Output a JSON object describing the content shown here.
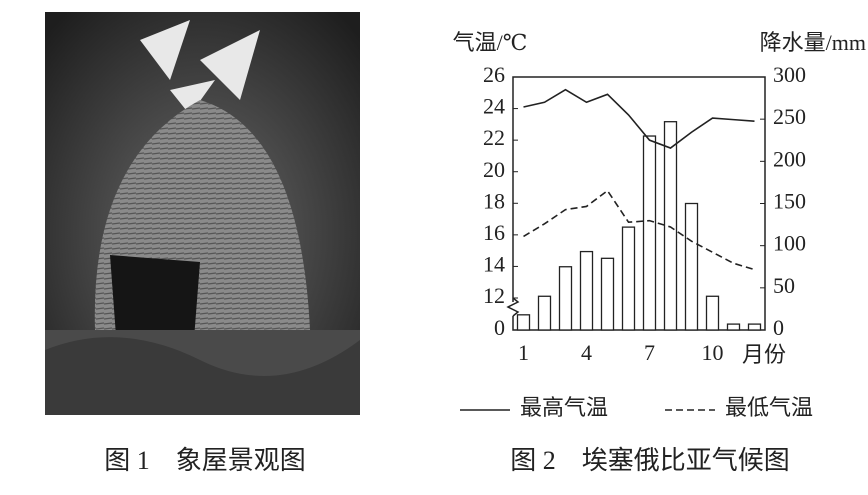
{
  "figure1": {
    "caption": "图 1　象屋景观图"
  },
  "chart_data": {
    "type": "bar_line",
    "title": "图 2　埃塞俄比亚气候图",
    "y_label": "气温/℃",
    "y2_label": "降水量/mm",
    "x_label": "月份",
    "categories": [
      1,
      null,
      null,
      4,
      null,
      null,
      7,
      null,
      null,
      10,
      null,
      null
    ],
    "series": [
      {
        "name": "最高气温",
        "type": "line",
        "dash": false,
        "color": "#222222",
        "values": [
          24.1,
          24.4,
          25.2,
          24.4,
          24.9,
          23.6,
          22.0,
          21.5,
          22.5,
          23.4,
          23.3,
          23.2
        ]
      },
      {
        "name": "最低气温",
        "type": "line",
        "dash": true,
        "color": "#222222",
        "values": [
          15.9,
          16.7,
          17.6,
          17.8,
          18.8,
          16.8,
          16.9,
          16.5,
          15.6,
          14.9,
          14.2,
          13.8
        ]
      },
      {
        "type": "bar",
        "axis": "y2",
        "color": "#ffffff",
        "values": [
          18,
          40,
          75,
          93,
          85,
          122,
          230,
          247,
          150,
          40,
          7,
          7
        ]
      }
    ],
    "ylim": [
      0,
      26
    ],
    "y_break": [
      0,
      12
    ],
    "yticks": [
      0,
      12,
      14,
      16,
      18,
      20,
      22,
      24,
      26
    ],
    "y2lim": [
      0,
      300
    ],
    "y2ticks": [
      0,
      50,
      100,
      150,
      200,
      250,
      300
    ],
    "grid": false,
    "legend": "bottom"
  }
}
